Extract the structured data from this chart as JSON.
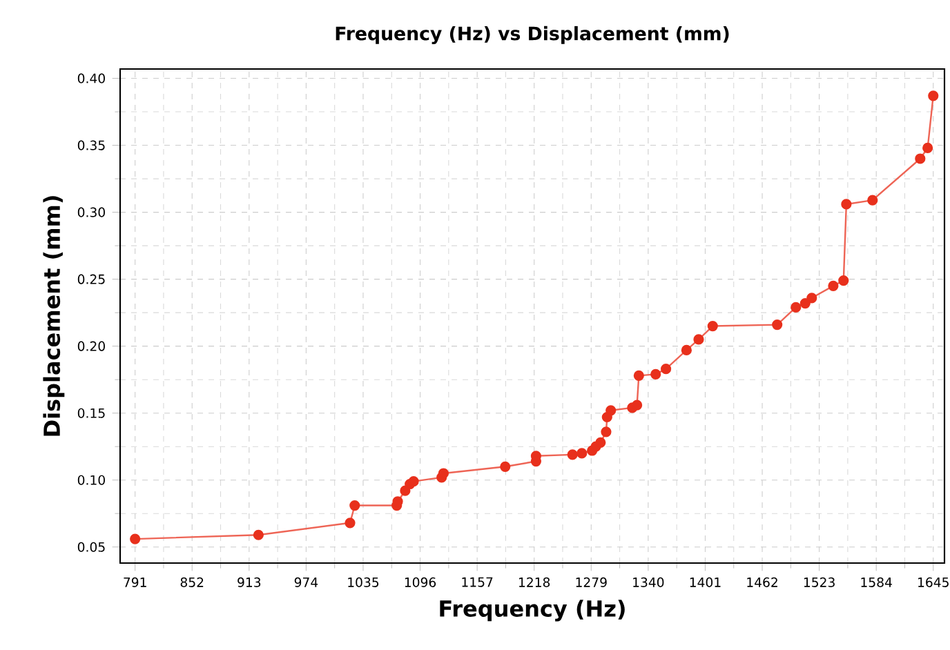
{
  "chart_data": {
    "type": "line",
    "title": "Frequency (Hz) vs Displacement (mm)",
    "xlabel": "Frequency (Hz)",
    "ylabel": "Displacement (mm)",
    "xlim": [
      775,
      1657
    ],
    "ylim": [
      0.038,
      0.407
    ],
    "xticks": [
      791,
      852,
      913,
      974,
      1035,
      1096,
      1157,
      1218,
      1279,
      1340,
      1401,
      1462,
      1523,
      1584,
      1645
    ],
    "yticks": [
      {
        "value": 0.05,
        "label": "0.05"
      },
      {
        "value": 0.1,
        "label": "0.10"
      },
      {
        "value": 0.15,
        "label": "0.15"
      },
      {
        "value": 0.2,
        "label": "0.20"
      },
      {
        "value": 0.25,
        "label": "0.25"
      },
      {
        "value": 0.3,
        "label": "0.30"
      },
      {
        "value": 0.35,
        "label": "0.35"
      },
      {
        "value": 0.4,
        "label": "0.40"
      }
    ],
    "grid": true,
    "marker": "circle",
    "line_style": "solid",
    "series": [
      {
        "color": "#e8301c",
        "x": [
          791,
          923,
          1021,
          1026,
          1067,
          1071,
          1072,
          1080,
          1085,
          1089,
          1119,
          1121,
          1187,
          1220,
          1220,
          1259,
          1269,
          1280,
          1284,
          1289,
          1295,
          1296,
          1300,
          1323,
          1328,
          1330,
          1348,
          1359,
          1381,
          1394,
          1409,
          1478,
          1498,
          1508,
          1515,
          1538,
          1549,
          1552,
          1580,
          1631,
          1639,
          1645
        ],
        "values": [
          0.056,
          0.059,
          0.068,
          0.081,
          null,
          0.081,
          0.084,
          0.092,
          0.097,
          0.099,
          0.102,
          0.105,
          0.11,
          0.114,
          0.118,
          0.119,
          0.12,
          0.122,
          0.125,
          0.128,
          0.136,
          0.147,
          0.152,
          0.154,
          0.156,
          0.178,
          0.179,
          0.183,
          0.197,
          0.205,
          0.215,
          0.216,
          0.229,
          0.232,
          0.236,
          0.245,
          0.249,
          0.306,
          0.309,
          0.34,
          0.348,
          0.387
        ]
      }
    ]
  }
}
